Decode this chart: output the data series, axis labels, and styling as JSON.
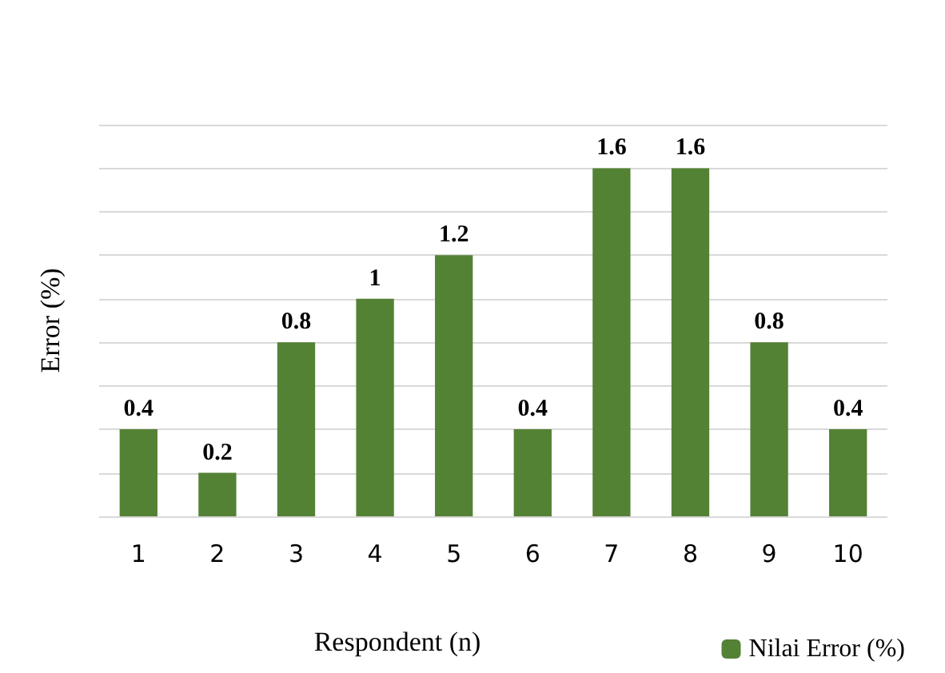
{
  "chart_data": {
    "type": "bar",
    "categories": [
      "1",
      "2",
      "3",
      "4",
      "5",
      "6",
      "7",
      "8",
      "9",
      "10"
    ],
    "series": [
      {
        "name": "Nilai Error (%)",
        "color": "#548235",
        "values": [
          0.4,
          0.2,
          0.8,
          1,
          1.2,
          0.4,
          1.6,
          1.6,
          0.8,
          0.4
        ]
      }
    ],
    "xlabel": "Respondent (n)",
    "ylabel": "Error (%)",
    "ylim": [
      0,
      1.8
    ],
    "yticks": [
      {
        "value": 0,
        "label": null
      },
      {
        "value": 0.2,
        "label": null
      },
      {
        "value": 0.4,
        "label": null
      },
      {
        "value": 0.6,
        "label": null
      },
      {
        "value": 0.8,
        "label": null
      },
      {
        "value": 1,
        "label": null
      },
      {
        "value": 1.2,
        "label": null
      },
      {
        "value": 1.4,
        "label": null
      },
      {
        "value": 1.6,
        "label": null
      },
      {
        "value": 1.8,
        "label": null
      }
    ],
    "tick_labels": "x",
    "grid": "y",
    "data_labels": true,
    "legend": "bottom right"
  }
}
